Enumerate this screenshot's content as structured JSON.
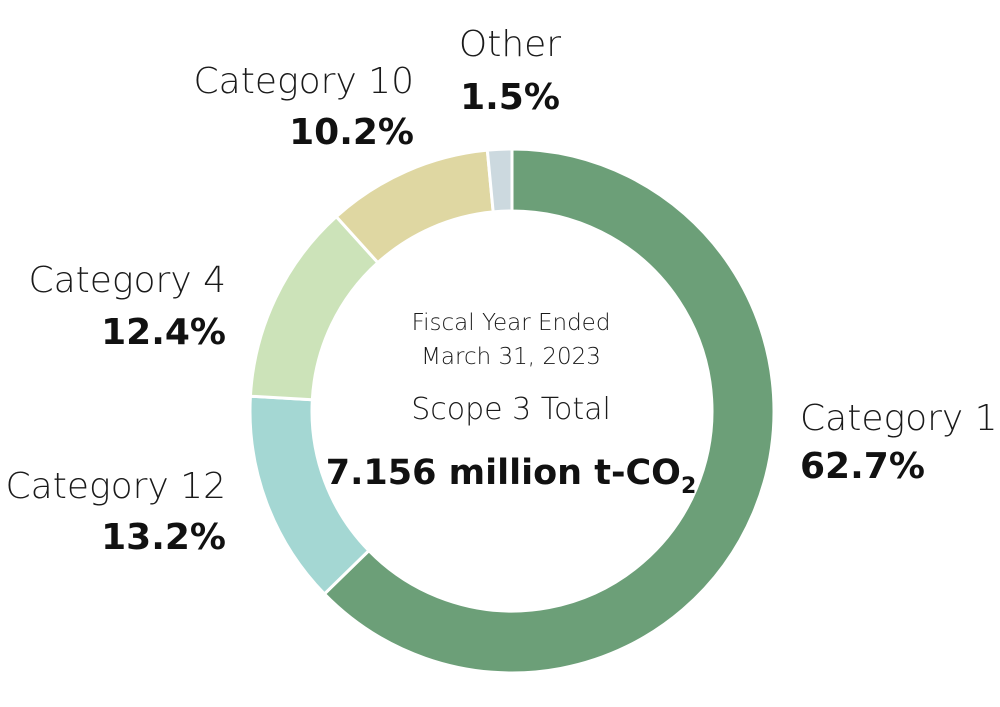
{
  "chart_data": {
    "type": "pie",
    "center": {
      "line1": "Fiscal Year Ended",
      "line2": "March 31, 2023",
      "line3": "Scope 3 Total",
      "total_main": "7.156 million t-CO",
      "total_sub": "2"
    },
    "slices": [
      {
        "name": "Category 1",
        "value": 62.7,
        "label": "62.7%",
        "color": "#6c9f78"
      },
      {
        "name": "Category 12",
        "value": 13.2,
        "label": "13.2%",
        "color": "#a4d7d3"
      },
      {
        "name": "Category 4",
        "value": 12.4,
        "label": "12.4%",
        "color": "#cce3b9"
      },
      {
        "name": "Category 10",
        "value": 10.2,
        "label": "10.2%",
        "color": "#dfd7a2"
      },
      {
        "name": "Other",
        "value": 1.5,
        "label": "1.5%",
        "color": "#ccd9df"
      }
    ]
  }
}
